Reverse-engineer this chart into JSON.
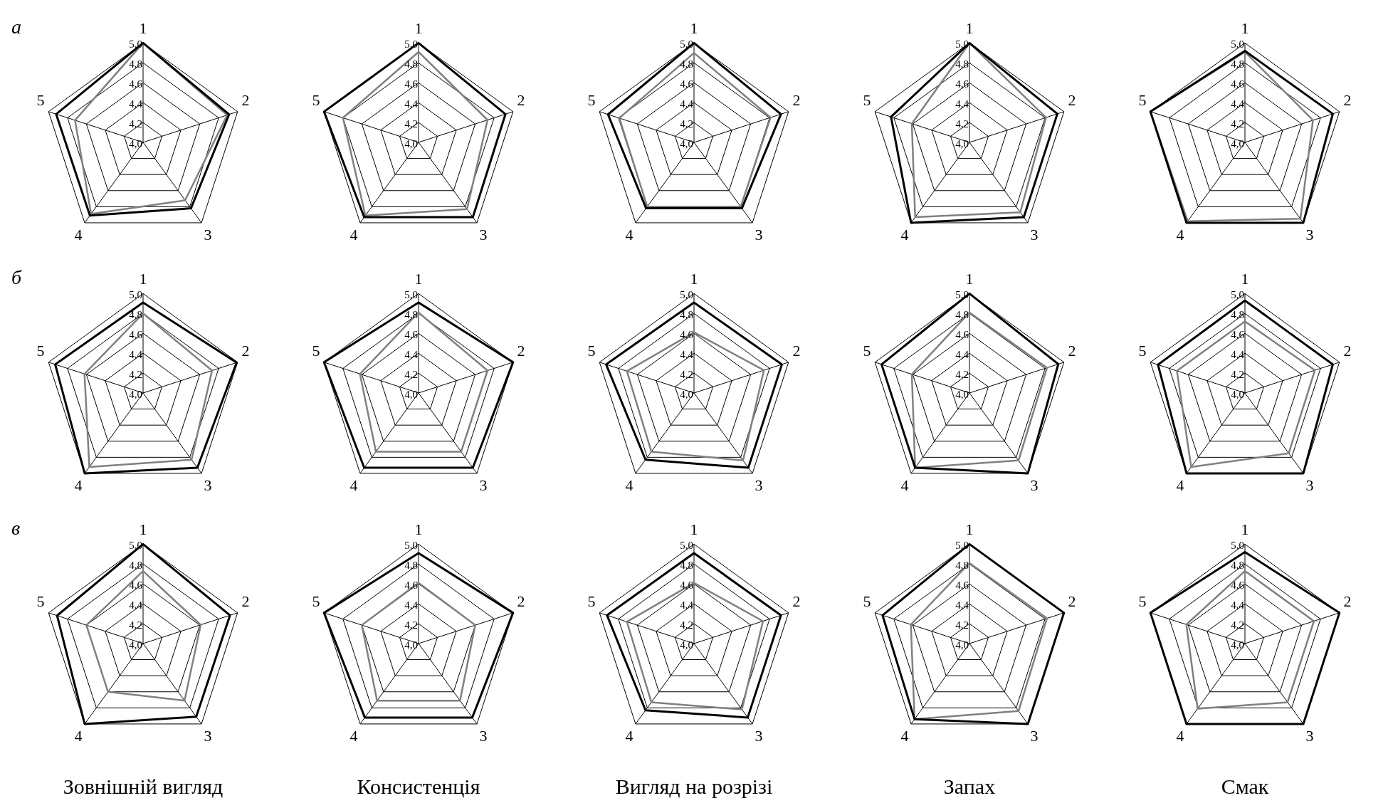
{
  "chart_data": [
    {
      "type": "radar",
      "annotations": [
        "а"
      ],
      "categories": [
        "1",
        "2",
        "3",
        "4",
        "5"
      ],
      "ylim": [
        4,
        5
      ],
      "yticks": [
        {
          "value": 4,
          "label": "4,0"
        },
        {
          "value": 4.2,
          "label": "4,2"
        },
        {
          "value": 4.4,
          "label": "4,4"
        },
        {
          "value": 4.6,
          "label": "4,6"
        },
        {
          "value": 4.8,
          "label": "4,8"
        },
        {
          "value": 5,
          "label": "5,0"
        }
      ],
      "grid": true,
      "legend": false,
      "marker": "none",
      "series": [
        {
          "color": "#000000",
          "values": [
            5.0,
            4.91,
            4.82,
            4.91,
            4.92
          ]
        },
        {
          "color": "#808080",
          "values": [
            5.0,
            4.89,
            4.72,
            4.89,
            4.72
          ]
        }
      ]
    },
    {
      "type": "radar",
      "categories": [
        "1",
        "2",
        "3",
        "4",
        "5"
      ],
      "ylim": [
        4,
        5
      ],
      "yticks": [
        {
          "value": 4,
          "label": "4,0"
        },
        {
          "value": 4.2,
          "label": "4,2"
        },
        {
          "value": 4.4,
          "label": "4,4"
        },
        {
          "value": 4.6,
          "label": "4,6"
        },
        {
          "value": 4.8,
          "label": "4,8"
        },
        {
          "value": 5,
          "label": "5,0"
        }
      ],
      "grid": true,
      "legend": false,
      "marker": "none",
      "series": [
        {
          "color": "#000000",
          "values": [
            5.0,
            4.92,
            4.93,
            4.93,
            5.0
          ]
        },
        {
          "color": "#808080",
          "values": [
            4.91,
            4.73,
            4.83,
            4.91,
            4.8
          ]
        }
      ]
    },
    {
      "type": "radar",
      "categories": [
        "1",
        "2",
        "3",
        "4",
        "5"
      ],
      "ylim": [
        4,
        5
      ],
      "yticks": [
        {
          "value": 4,
          "label": "4,0"
        },
        {
          "value": 4.2,
          "label": "4,2"
        },
        {
          "value": 4.4,
          "label": "4,4"
        },
        {
          "value": 4.6,
          "label": "4,6"
        },
        {
          "value": 4.8,
          "label": "4,8"
        },
        {
          "value": 5,
          "label": "5,0"
        }
      ],
      "grid": true,
      "legend": false,
      "marker": "none",
      "series": [
        {
          "color": "#000000",
          "values": [
            5.0,
            4.92,
            4.82,
            4.82,
            4.91
          ]
        },
        {
          "color": "#808080",
          "values": [
            4.9,
            4.81,
            4.8,
            4.8,
            4.79
          ]
        }
      ]
    },
    {
      "type": "radar",
      "categories": [
        "1",
        "2",
        "3",
        "4",
        "5"
      ],
      "ylim": [
        4,
        5
      ],
      "yticks": [
        {
          "value": 4,
          "label": "4,0"
        },
        {
          "value": 4.2,
          "label": "4,2"
        },
        {
          "value": 4.4,
          "label": "4,4"
        },
        {
          "value": 4.6,
          "label": "4,6"
        },
        {
          "value": 4.8,
          "label": "4,8"
        },
        {
          "value": 5,
          "label": "5,0"
        }
      ],
      "grid": true,
      "legend": false,
      "marker": "none",
      "series": [
        {
          "color": "#000000",
          "values": [
            5.0,
            4.93,
            4.93,
            5.0,
            4.83
          ]
        },
        {
          "color": "#808080",
          "values": [
            5.0,
            4.81,
            4.87,
            4.93,
            4.61
          ]
        }
      ]
    },
    {
      "type": "radar",
      "categories": [
        "1",
        "2",
        "3",
        "4",
        "5"
      ],
      "ylim": [
        4,
        5
      ],
      "yticks": [
        {
          "value": 4,
          "label": "4,0"
        },
        {
          "value": 4.2,
          "label": "4,2"
        },
        {
          "value": 4.4,
          "label": "4,4"
        },
        {
          "value": 4.6,
          "label": "4,6"
        },
        {
          "value": 4.8,
          "label": "4,8"
        },
        {
          "value": 5,
          "label": "5,0"
        }
      ],
      "grid": true,
      "legend": false,
      "marker": "none",
      "series": [
        {
          "color": "#000000",
          "values": [
            4.92,
            4.93,
            5.0,
            5.0,
            5.0
          ]
        },
        {
          "color": "#808080",
          "values": [
            4.91,
            4.72,
            4.95,
            4.98,
            5.0
          ]
        }
      ]
    },
    {
      "type": "radar",
      "annotations": [
        "б"
      ],
      "categories": [
        "1",
        "2",
        "3",
        "4",
        "5"
      ],
      "ylim": [
        4,
        5
      ],
      "yticks": [
        {
          "value": 4,
          "label": "4,0"
        },
        {
          "value": 4.2,
          "label": "4,2"
        },
        {
          "value": 4.4,
          "label": "4,4"
        },
        {
          "value": 4.6,
          "label": "4,6"
        },
        {
          "value": 4.8,
          "label": "4,8"
        },
        {
          "value": 5,
          "label": "5,0"
        }
      ],
      "grid": true,
      "legend": false,
      "marker": "none",
      "series": [
        {
          "color": "#000000",
          "values": [
            4.91,
            4.99,
            4.93,
            5.0,
            4.93
          ]
        },
        {
          "color": "#808080",
          "values": [
            4.8,
            4.73,
            4.83,
            4.92,
            4.62
          ]
        }
      ]
    },
    {
      "type": "radar",
      "categories": [
        "1",
        "2",
        "3",
        "4",
        "5"
      ],
      "ylim": [
        4,
        5
      ],
      "yticks": [
        {
          "value": 4,
          "label": "4,0"
        },
        {
          "value": 4.2,
          "label": "4,2"
        },
        {
          "value": 4.4,
          "label": "4,4"
        },
        {
          "value": 4.6,
          "label": "4,6"
        },
        {
          "value": 4.8,
          "label": "4,8"
        },
        {
          "value": 5,
          "label": "5,0"
        }
      ],
      "grid": true,
      "legend": false,
      "marker": "none",
      "series": [
        {
          "color": "#000000",
          "values": [
            4.91,
            5.0,
            4.93,
            4.93,
            5.0
          ]
        },
        {
          "color": "#808080",
          "values": [
            4.81,
            4.73,
            4.73,
            4.73,
            4.62
          ]
        }
      ]
    },
    {
      "type": "radar",
      "categories": [
        "1",
        "2",
        "3",
        "4",
        "5"
      ],
      "ylim": [
        4,
        5
      ],
      "yticks": [
        {
          "value": 4,
          "label": "4,0"
        },
        {
          "value": 4.2,
          "label": "4,2"
        },
        {
          "value": 4.4,
          "label": "4,4"
        },
        {
          "value": 4.6,
          "label": "4,6"
        },
        {
          "value": 4.8,
          "label": "4,8"
        },
        {
          "value": 5,
          "label": "5,0"
        }
      ],
      "grid": true,
      "legend": false,
      "marker": "none",
      "series": [
        {
          "color": "#000000",
          "values": [
            4.91,
            4.93,
            4.93,
            4.83,
            4.93
          ]
        },
        {
          "color": "#808080",
          "values": [
            4.61,
            4.74,
            4.84,
            4.73,
            4.71
          ]
        }
      ]
    },
    {
      "type": "radar",
      "categories": [
        "1",
        "2",
        "3",
        "4",
        "5"
      ],
      "ylim": [
        4,
        5
      ],
      "yticks": [
        {
          "value": 4,
          "label": "4,0"
        },
        {
          "value": 4.2,
          "label": "4,2"
        },
        {
          "value": 4.4,
          "label": "4,4"
        },
        {
          "value": 4.6,
          "label": "4,6"
        },
        {
          "value": 4.8,
          "label": "4,8"
        },
        {
          "value": 5,
          "label": "5,0"
        }
      ],
      "grid": true,
      "legend": false,
      "marker": "none",
      "series": [
        {
          "color": "#000000",
          "values": [
            5.0,
            4.94,
            5.0,
            4.93,
            4.93
          ]
        },
        {
          "color": "#808080",
          "values": [
            4.81,
            4.82,
            4.84,
            4.93,
            4.61
          ]
        }
      ]
    },
    {
      "type": "radar",
      "categories": [
        "1",
        "2",
        "3",
        "4",
        "5"
      ],
      "ylim": [
        4,
        5
      ],
      "yticks": [
        {
          "value": 4,
          "label": "4,0"
        },
        {
          "value": 4.2,
          "label": "4,2"
        },
        {
          "value": 4.4,
          "label": "4,4"
        },
        {
          "value": 4.6,
          "label": "4,6"
        },
        {
          "value": 4.8,
          "label": "4,8"
        },
        {
          "value": 5,
          "label": "5,0"
        }
      ],
      "grid": true,
      "legend": false,
      "marker": "none",
      "series": [
        {
          "color": "#000000",
          "values": [
            4.93,
            4.93,
            5.0,
            5.0,
            4.92
          ]
        },
        {
          "color": "#808080",
          "values": [
            4.72,
            4.74,
            4.75,
            4.92,
            4.72
          ]
        }
      ]
    },
    {
      "type": "radar",
      "annotations": [
        "в"
      ],
      "xlabel": "Зовнішній вигляд",
      "categories": [
        "1",
        "2",
        "3",
        "4",
        "5"
      ],
      "ylim": [
        4,
        5
      ],
      "yticks": [
        {
          "value": 4,
          "label": "4,0"
        },
        {
          "value": 4.2,
          "label": "4,2"
        },
        {
          "value": 4.4,
          "label": "4,4"
        },
        {
          "value": 4.6,
          "label": "4,6"
        },
        {
          "value": 4.8,
          "label": "4,8"
        },
        {
          "value": 5,
          "label": "5,0"
        }
      ],
      "grid": true,
      "legend": false,
      "marker": "none",
      "series": [
        {
          "color": "#000000",
          "values": [
            5.0,
            4.92,
            4.91,
            5.0,
            4.91
          ]
        },
        {
          "color": "#808080",
          "values": [
            4.73,
            4.61,
            4.71,
            4.6,
            4.6
          ]
        }
      ]
    },
    {
      "type": "radar",
      "xlabel": "Консистенція",
      "categories": [
        "1",
        "2",
        "3",
        "4",
        "5"
      ],
      "ylim": [
        4,
        5
      ],
      "yticks": [
        {
          "value": 4,
          "label": "4,0"
        },
        {
          "value": 4.2,
          "label": "4,2"
        },
        {
          "value": 4.4,
          "label": "4,4"
        },
        {
          "value": 4.6,
          "label": "4,6"
        },
        {
          "value": 4.8,
          "label": "4,8"
        },
        {
          "value": 5,
          "label": "5,0"
        }
      ],
      "grid": true,
      "legend": false,
      "marker": "none",
      "series": [
        {
          "color": "#000000",
          "values": [
            4.91,
            5.0,
            4.92,
            4.92,
            5.0
          ]
        },
        {
          "color": "#808080",
          "values": [
            4.61,
            4.6,
            4.71,
            4.71,
            4.6
          ]
        }
      ]
    },
    {
      "type": "radar",
      "xlabel": "Вигляд на розрізі",
      "categories": [
        "1",
        "2",
        "3",
        "4",
        "5"
      ],
      "ylim": [
        4,
        5
      ],
      "yticks": [
        {
          "value": 4,
          "label": "4,0"
        },
        {
          "value": 4.2,
          "label": "4,2"
        },
        {
          "value": 4.4,
          "label": "4,4"
        },
        {
          "value": 4.6,
          "label": "4,6"
        },
        {
          "value": 4.8,
          "label": "4,8"
        },
        {
          "value": 5,
          "label": "5,0"
        }
      ],
      "grid": true,
      "legend": false,
      "marker": "none",
      "series": [
        {
          "color": "#000000",
          "values": [
            4.91,
            4.92,
            4.92,
            4.83,
            4.92
          ]
        },
        {
          "color": "#808080",
          "values": [
            4.61,
            4.73,
            4.82,
            4.73,
            4.71
          ]
        }
      ]
    },
    {
      "type": "radar",
      "xlabel": "Запах",
      "categories": [
        "1",
        "2",
        "3",
        "4",
        "5"
      ],
      "ylim": [
        4,
        5
      ],
      "yticks": [
        {
          "value": 4,
          "label": "4,0"
        },
        {
          "value": 4.2,
          "label": "4,2"
        },
        {
          "value": 4.4,
          "label": "4,4"
        },
        {
          "value": 4.6,
          "label": "4,6"
        },
        {
          "value": 4.8,
          "label": "4,8"
        },
        {
          "value": 5,
          "label": "5,0"
        }
      ],
      "grid": true,
      "legend": false,
      "marker": "none",
      "series": [
        {
          "color": "#000000",
          "values": [
            5.0,
            5.0,
            5.0,
            4.94,
            4.92
          ]
        },
        {
          "color": "#808080",
          "values": [
            4.81,
            4.82,
            4.84,
            4.94,
            4.62
          ]
        }
      ]
    },
    {
      "type": "radar",
      "xlabel": "Смак",
      "categories": [
        "1",
        "2",
        "3",
        "4",
        "5"
      ],
      "ylim": [
        4,
        5
      ],
      "yticks": [
        {
          "value": 4,
          "label": "4,0"
        },
        {
          "value": 4.2,
          "label": "4,2"
        },
        {
          "value": 4.4,
          "label": "4,4"
        },
        {
          "value": 4.6,
          "label": "4,6"
        },
        {
          "value": 4.8,
          "label": "4,8"
        },
        {
          "value": 5,
          "label": "5,0"
        }
      ],
      "grid": true,
      "legend": false,
      "marker": "none",
      "series": [
        {
          "color": "#000000",
          "values": [
            4.92,
            5.0,
            5.0,
            5.0,
            5.0
          ]
        },
        {
          "color": "#808080",
          "values": [
            4.73,
            4.73,
            4.73,
            4.81,
            4.62
          ]
        }
      ]
    }
  ]
}
